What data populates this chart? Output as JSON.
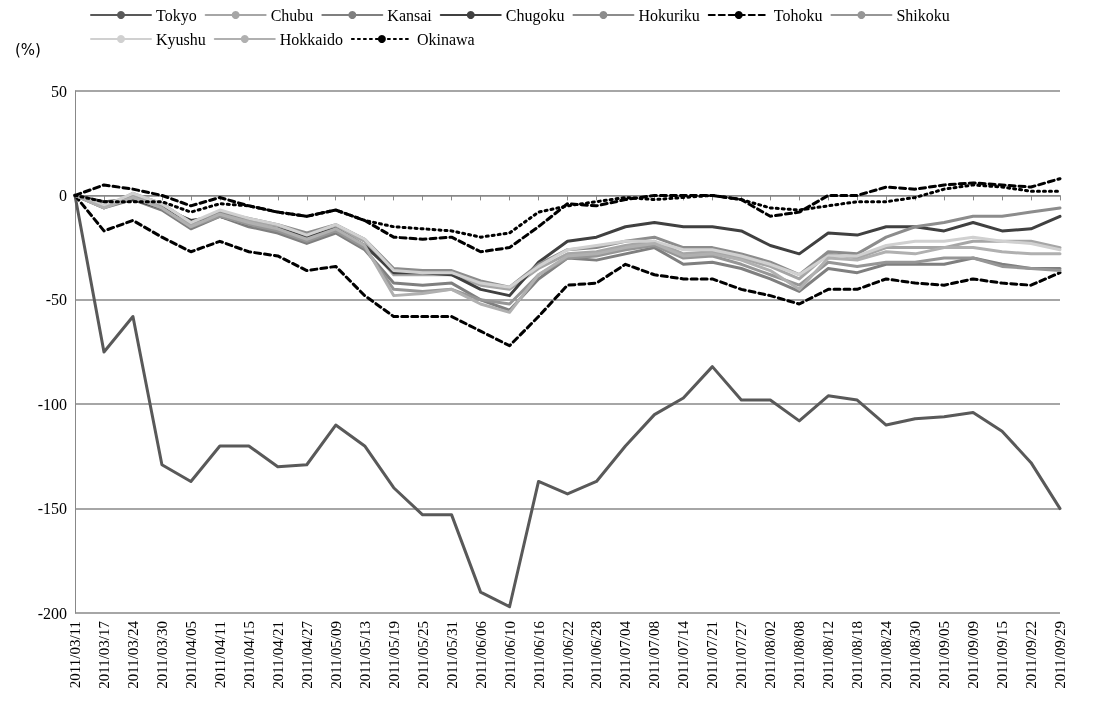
{
  "chart_data": {
    "type": "line",
    "ylabel": "(%)",
    "categories": [
      "2011/03/11",
      "2011/03/17",
      "2011/03/24",
      "2011/03/30",
      "2011/04/05",
      "2011/04/11",
      "2011/04/15",
      "2011/04/21",
      "2011/04/27",
      "2011/05/09",
      "2011/05/13",
      "2011/05/19",
      "2011/05/25",
      "2011/05/31",
      "2011/06/06",
      "2011/06/10",
      "2011/06/16",
      "2011/06/22",
      "2011/06/28",
      "2011/07/04",
      "2011/07/08",
      "2011/07/14",
      "2011/07/21",
      "2011/07/27",
      "2011/08/02",
      "2011/08/08",
      "2011/08/12",
      "2011/08/18",
      "2011/08/24",
      "2011/08/30",
      "2011/09/05",
      "2011/09/09",
      "2011/09/15",
      "2011/09/22",
      "2011/09/29"
    ],
    "series": [
      {
        "name": "Tokyo",
        "color": "#595959",
        "line_style": "solid",
        "values": [
          0,
          -75,
          -58,
          -129,
          -137,
          -120,
          -120,
          -130,
          -129,
          -110,
          -120,
          -140,
          -153,
          -153,
          -190,
          -197,
          -137,
          -143,
          -137,
          -120,
          -105,
          -97,
          -82,
          -98,
          -98,
          -108,
          -96,
          -98,
          -110,
          -107,
          -106,
          -104,
          -113,
          -128,
          -150
        ]
      },
      {
        "name": "Chubu",
        "color": "#a6a6a6",
        "line_style": "solid",
        "values": [
          0,
          -5,
          0,
          -5,
          -14,
          -8,
          -12,
          -15,
          -20,
          -15,
          -22,
          -38,
          -38,
          -38,
          -43,
          -45,
          -35,
          -28,
          -27,
          -24,
          -22,
          -28,
          -27,
          -30,
          -34,
          -40,
          -28,
          -30,
          -25,
          -25,
          -25,
          -22,
          -22,
          -22,
          -25
        ]
      },
      {
        "name": "Kansai",
        "color": "#7f7f7f",
        "line_style": "solid",
        "values": [
          0,
          -6,
          -2,
          -7,
          -16,
          -10,
          -15,
          -18,
          -23,
          -18,
          -26,
          -42,
          -43,
          -42,
          -50,
          -55,
          -40,
          -30,
          -31,
          -28,
          -25,
          -33,
          -32,
          -35,
          -40,
          -46,
          -35,
          -37,
          -33,
          -33,
          -33,
          -30,
          -33,
          -35,
          -35
        ]
      },
      {
        "name": "Chugoku",
        "color": "#404040",
        "line_style": "solid",
        "values": [
          0,
          -3,
          -2,
          -6,
          -12,
          -10,
          -14,
          -16,
          -20,
          -16,
          -24,
          -37,
          -37,
          -38,
          -45,
          -48,
          -32,
          -22,
          -20,
          -15,
          -13,
          -15,
          -15,
          -17,
          -24,
          -28,
          -18,
          -19,
          -15,
          -15,
          -17,
          -13,
          -17,
          -16,
          -10
        ]
      },
      {
        "name": "Hokuriku",
        "color": "#8c8c8c",
        "line_style": "solid",
        "values": [
          0,
          -6,
          1,
          -4,
          -13,
          -8,
          -11,
          -14,
          -18,
          -14,
          -21,
          -35,
          -36,
          -36,
          -41,
          -44,
          -33,
          -26,
          -25,
          -22,
          -20,
          -25,
          -25,
          -28,
          -32,
          -38,
          -27,
          -28,
          -20,
          -15,
          -13,
          -10,
          -10,
          -8,
          -6
        ]
      },
      {
        "name": "Tohoku",
        "color": "#000000",
        "line_style": "dashed",
        "values": [
          0,
          -17,
          -12,
          -20,
          -27,
          -22,
          -27,
          -29,
          -36,
          -34,
          -48,
          -58,
          -58,
          -58,
          -65,
          -72,
          -58,
          -43,
          -42,
          -33,
          -38,
          -40,
          -40,
          -45,
          -48,
          -52,
          -45,
          -45,
          -40,
          -42,
          -43,
          -40,
          -42,
          -43,
          -37
        ]
      },
      {
        "name": "Shikoku",
        "color": "#969696",
        "line_style": "solid",
        "values": [
          0,
          -5,
          -1,
          -6,
          -15,
          -10,
          -14,
          -17,
          -22,
          -17,
          -25,
          -45,
          -46,
          -45,
          -50,
          -52,
          -38,
          -30,
          -29,
          -26,
          -24,
          -30,
          -29,
          -33,
          -38,
          -43,
          -32,
          -34,
          -32,
          -32,
          -30,
          -30,
          -34,
          -35,
          -36
        ]
      },
      {
        "name": "Kyushu",
        "color": "#d0d0d0",
        "line_style": "solid",
        "values": [
          0,
          -5,
          1,
          -4,
          -13,
          -7,
          -11,
          -14,
          -19,
          -14,
          -21,
          -36,
          -37,
          -37,
          -42,
          -44,
          -34,
          -26,
          -24,
          -22,
          -22,
          -26,
          -26,
          -29,
          -33,
          -38,
          -29,
          -29,
          -24,
          -22,
          -22,
          -20,
          -22,
          -23,
          -26
        ]
      },
      {
        "name": "Hokkaido",
        "color": "#b0b0b0",
        "line_style": "solid",
        "values": [
          0,
          -6,
          -1,
          -6,
          -15,
          -9,
          -13,
          -16,
          -21,
          -16,
          -24,
          -48,
          -47,
          -45,
          -52,
          -56,
          -38,
          -29,
          -28,
          -25,
          -23,
          -29,
          -28,
          -31,
          -36,
          -45,
          -30,
          -31,
          -27,
          -28,
          -25,
          -25,
          -27,
          -28,
          -28
        ]
      },
      {
        "name": "Okinawa",
        "color": "#000000",
        "line_style": "dotted",
        "values": [
          0,
          -3,
          -3,
          -3,
          -8,
          -4,
          -5,
          -8,
          -10,
          -7,
          -12,
          -15,
          -16,
          -17,
          -20,
          -18,
          -8,
          -5,
          -3,
          -1,
          -2,
          -1,
          0,
          -2,
          -6,
          -7,
          -5,
          -3,
          -3,
          -1,
          3,
          5,
          4,
          2,
          2
        ]
      },
      {
        "color": "#000000",
        "line_style": "dashed",
        "values": [
          0,
          5,
          3,
          0,
          -5,
          -1,
          -5,
          -8,
          -10,
          -7,
          -12,
          -20,
          -21,
          -20,
          -27,
          -25,
          -15,
          -4,
          -5,
          -2,
          0,
          0,
          0,
          -2,
          -10,
          -8,
          0,
          0,
          4,
          3,
          5,
          6,
          5,
          4,
          8
        ]
      }
    ],
    "ylim": [
      -200,
      50
    ],
    "yticks": [
      -200,
      -150,
      -100,
      -50,
      0,
      50
    ],
    "grid": "y",
    "legend": "top",
    "marker": "none"
  }
}
